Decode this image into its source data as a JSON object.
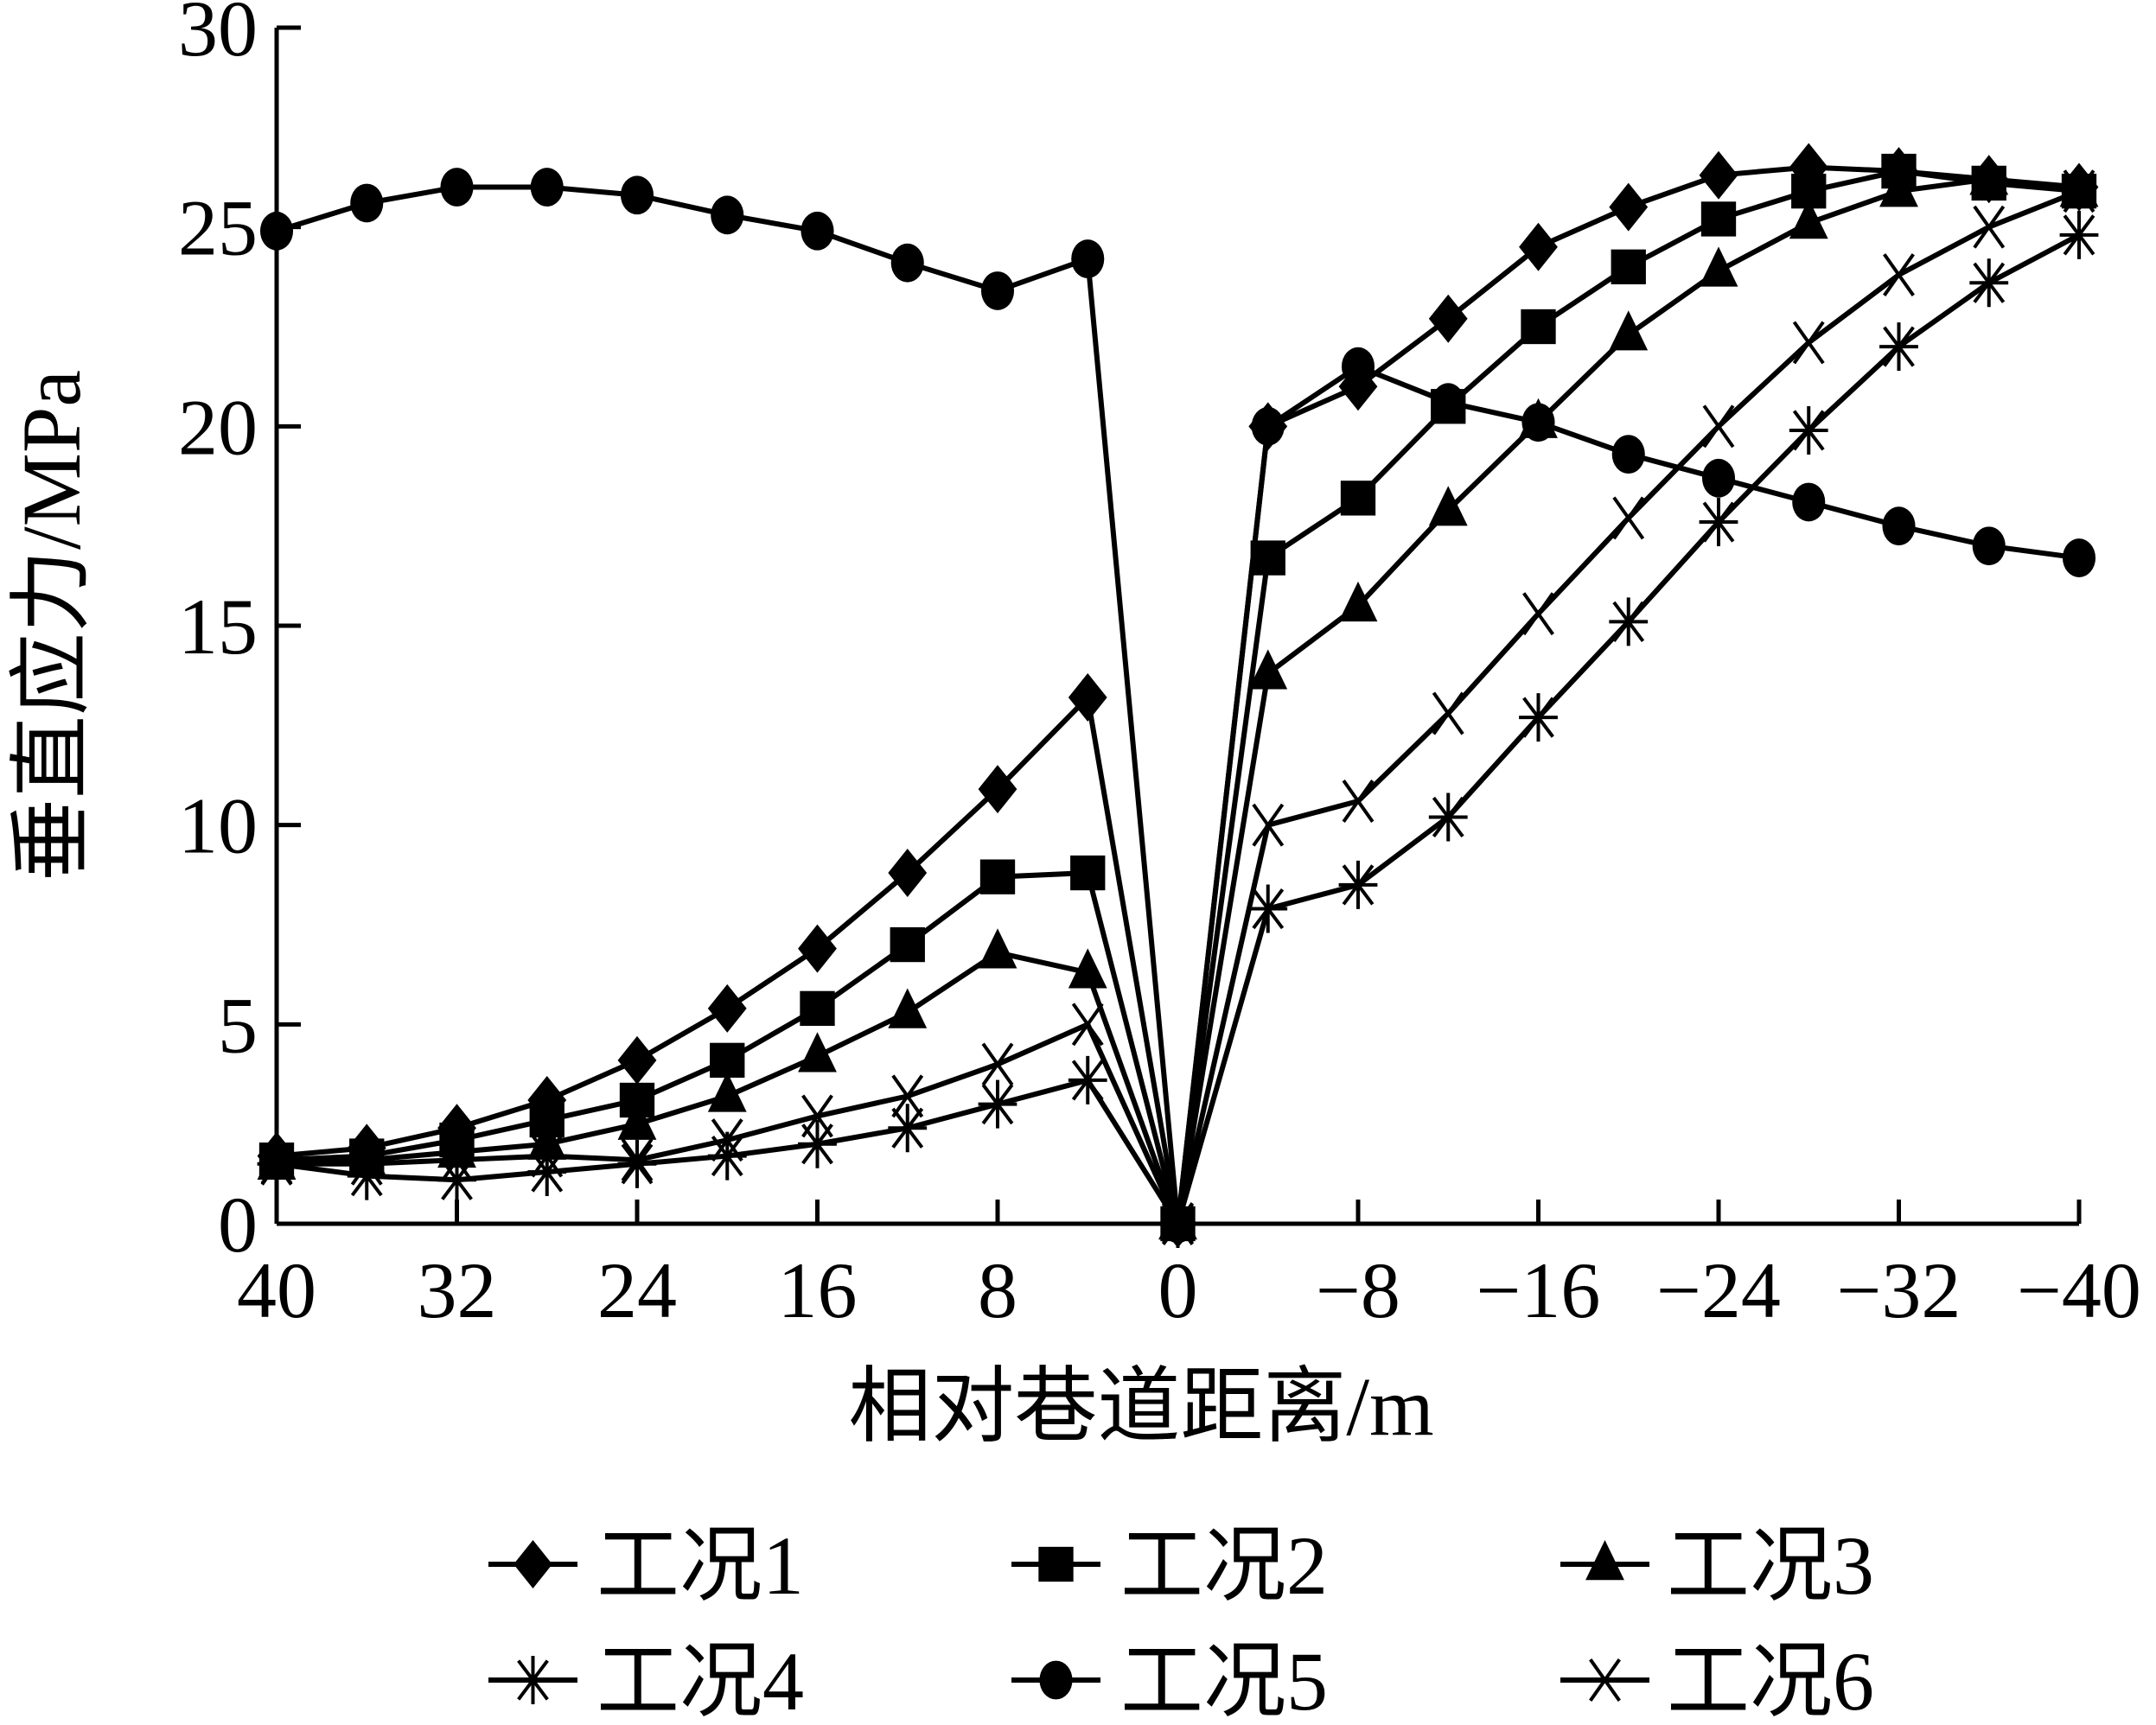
{
  "chart_data": {
    "type": "line",
    "title": "",
    "xlabel": "相对巷道距离/m",
    "ylabel": "垂直应力/MPa",
    "xlim": [
      40,
      -40
    ],
    "ylim": [
      0,
      30
    ],
    "x_reversed": true,
    "xticks": [
      40,
      32,
      24,
      16,
      8,
      0,
      -8,
      -16,
      -24,
      -32,
      -40
    ],
    "xtick_labels": [
      "40",
      "32",
      "24",
      "16",
      "8",
      "0",
      "−8",
      "−16",
      "−24",
      "−32",
      "−40"
    ],
    "yticks": [
      0,
      5,
      10,
      15,
      20,
      25,
      30
    ],
    "ytick_labels": [
      "0",
      "5",
      "10",
      "15",
      "20",
      "25",
      "30"
    ],
    "grid": false,
    "legend_placement": "bottom",
    "x": [
      40,
      36,
      32,
      28,
      24,
      20,
      16,
      12,
      8,
      4,
      0,
      -4,
      -8,
      -12,
      -16,
      -20,
      -24,
      -28,
      -32,
      -36,
      -40
    ],
    "series": [
      {
        "name": "工况1",
        "marker": "diamond",
        "values": [
          1.7,
          1.9,
          2.4,
          3.1,
          4.1,
          5.4,
          6.9,
          8.8,
          10.9,
          13.2,
          0,
          20.0,
          21.0,
          22.7,
          24.5,
          25.5,
          26.3,
          26.5,
          26.4,
          26.2,
          26.0
        ]
      },
      {
        "name": "工况2",
        "marker": "square",
        "values": [
          1.6,
          1.7,
          2.1,
          2.6,
          3.1,
          4.1,
          5.4,
          7.0,
          8.7,
          8.8,
          0,
          16.7,
          18.2,
          20.5,
          22.5,
          24.0,
          25.2,
          25.9,
          26.4,
          26.1,
          25.9
        ]
      },
      {
        "name": "工况3",
        "marker": "triangle",
        "values": [
          1.5,
          1.6,
          1.8,
          2.0,
          2.5,
          3.2,
          4.2,
          5.3,
          6.8,
          6.3,
          0,
          13.8,
          15.5,
          17.9,
          20.1,
          22.3,
          23.9,
          25.1,
          25.9,
          26.2,
          25.9
        ]
      },
      {
        "name": "工况4",
        "marker": "asterisk",
        "values": [
          1.5,
          1.2,
          1.1,
          1.3,
          1.5,
          1.7,
          2.0,
          2.4,
          3.0,
          3.6,
          0,
          7.9,
          8.5,
          10.2,
          12.7,
          15.1,
          17.6,
          19.9,
          22.0,
          23.6,
          24.8
        ]
      },
      {
        "name": "工况5",
        "marker": "circle",
        "values": [
          24.9,
          25.6,
          26.0,
          26.0,
          25.8,
          25.3,
          24.9,
          24.1,
          23.4,
          24.2,
          0,
          20.0,
          21.5,
          20.6,
          20.1,
          19.3,
          18.7,
          18.1,
          17.5,
          17.0,
          16.7
        ]
      },
      {
        "name": "工况6",
        "marker": "x",
        "values": [
          1.5,
          1.5,
          1.6,
          1.7,
          1.6,
          2.1,
          2.7,
          3.2,
          4.0,
          5.0,
          0,
          10.0,
          10.6,
          12.8,
          15.3,
          17.7,
          20.0,
          22.1,
          23.8,
          25.0,
          25.9
        ]
      }
    ]
  }
}
